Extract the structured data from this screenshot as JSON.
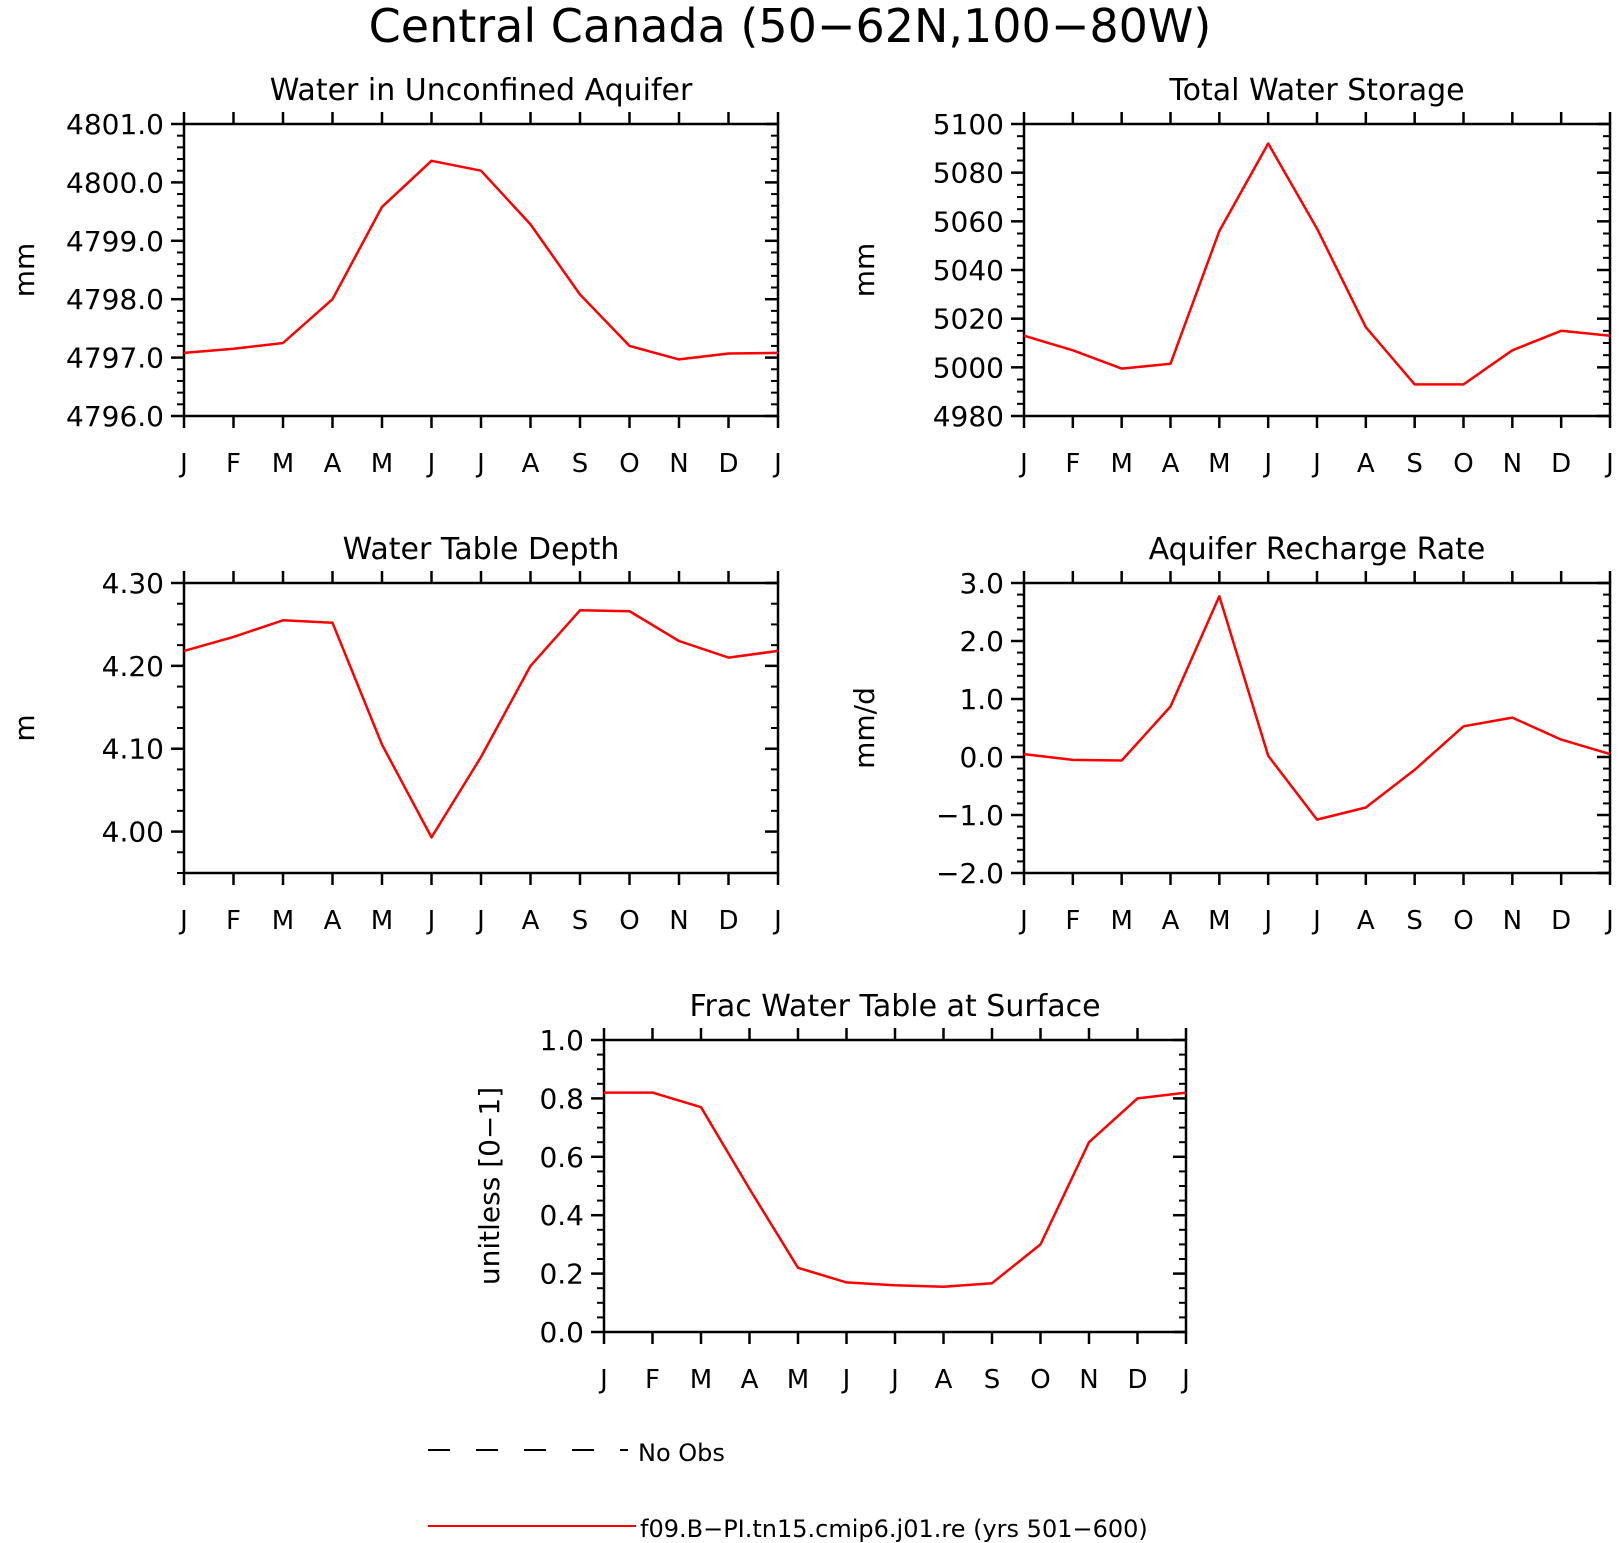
{
  "figure": {
    "title": "Central Canada (50−62N,100−80W)"
  },
  "months": [
    "J",
    "F",
    "M",
    "A",
    "M",
    "J",
    "J",
    "A",
    "S",
    "O",
    "N",
    "D",
    "J"
  ],
  "colors": {
    "model_line": "#ff0000",
    "obs_line": "#000000",
    "axes": "#000000"
  },
  "legend": {
    "items": [
      {
        "label": "No Obs",
        "style": "dashed",
        "color": "#000000"
      },
      {
        "label": "f09.B−PI.tn15.cmip6.j01.re (yrs 501−600)",
        "style": "solid",
        "color": "#ff0000"
      }
    ]
  },
  "chart_data": [
    {
      "type": "line",
      "title": "Water in Unconfined Aquifer",
      "ylabel": "mm",
      "ylim": [
        4796.0,
        4801.0
      ],
      "yticks": [
        4796.0,
        4797.0,
        4798.0,
        4799.0,
        4800.0,
        4801.0
      ],
      "yticklabels": [
        "4796.0",
        "4797.0",
        "4798.0",
        "4799.0",
        "4800.0",
        "4801.0"
      ],
      "yminor": 5,
      "series": [
        {
          "values": [
            4797.08,
            4797.15,
            4797.25,
            4798.0,
            4799.58,
            4800.37,
            4800.2,
            4799.28,
            4798.08,
            4797.2,
            4796.97,
            4797.07,
            4797.08
          ]
        }
      ]
    },
    {
      "type": "line",
      "title": "Total Water Storage",
      "ylabel": "mm",
      "ylim": [
        4980,
        5100
      ],
      "yticks": [
        4980,
        5000,
        5020,
        5040,
        5060,
        5080,
        5100
      ],
      "yticklabels": [
        "4980",
        "5000",
        "5020",
        "5040",
        "5060",
        "5080",
        "5100"
      ],
      "yminor": 4,
      "series": [
        {
          "values": [
            5013,
            5007,
            4999.5,
            5001.5,
            5056,
            5092,
            5057,
            5016.5,
            4993,
            4993,
            5007,
            5015,
            5013
          ]
        }
      ]
    },
    {
      "type": "line",
      "title": "Water Table Depth",
      "ylabel": "m",
      "ylim": [
        3.95,
        4.3
      ],
      "yticks": [
        4.0,
        4.1,
        4.2,
        4.3
      ],
      "yticklabels": [
        "4.00",
        "4.10",
        "4.20",
        "4.30"
      ],
      "yminor": 4,
      "series": [
        {
          "values": [
            4.218,
            4.235,
            4.255,
            4.252,
            4.105,
            3.993,
            4.09,
            4.2,
            4.267,
            4.266,
            4.23,
            4.21,
            4.218
          ]
        }
      ]
    },
    {
      "type": "line",
      "title": "Aquifer Recharge Rate",
      "ylabel": "mm/d",
      "ylim": [
        -2.0,
        3.0
      ],
      "yticks": [
        -2.0,
        -1.0,
        0.0,
        1.0,
        2.0,
        3.0
      ],
      "yticklabels": [
        "−2.0",
        "−1.0",
        "0.0",
        "1.0",
        "2.0",
        "3.0"
      ],
      "yminor": 5,
      "series": [
        {
          "values": [
            0.05,
            -0.05,
            -0.06,
            0.87,
            2.77,
            0.02,
            -1.08,
            -0.87,
            -0.22,
            0.53,
            0.68,
            0.3,
            0.05
          ]
        }
      ]
    },
    {
      "type": "line",
      "title": "Frac Water Table at Surface",
      "ylabel": "unitless [0−1]",
      "ylim": [
        0.0,
        1.0
      ],
      "yticks": [
        0.0,
        0.2,
        0.4,
        0.6,
        0.8,
        1.0
      ],
      "yticklabels": [
        "0.0",
        "0.2",
        "0.4",
        "0.6",
        "0.8",
        "1.0"
      ],
      "yminor": 4,
      "series": [
        {
          "values": [
            0.82,
            0.82,
            0.77,
            0.49,
            0.22,
            0.17,
            0.16,
            0.155,
            0.167,
            0.3,
            0.65,
            0.8,
            0.82
          ]
        }
      ]
    }
  ]
}
